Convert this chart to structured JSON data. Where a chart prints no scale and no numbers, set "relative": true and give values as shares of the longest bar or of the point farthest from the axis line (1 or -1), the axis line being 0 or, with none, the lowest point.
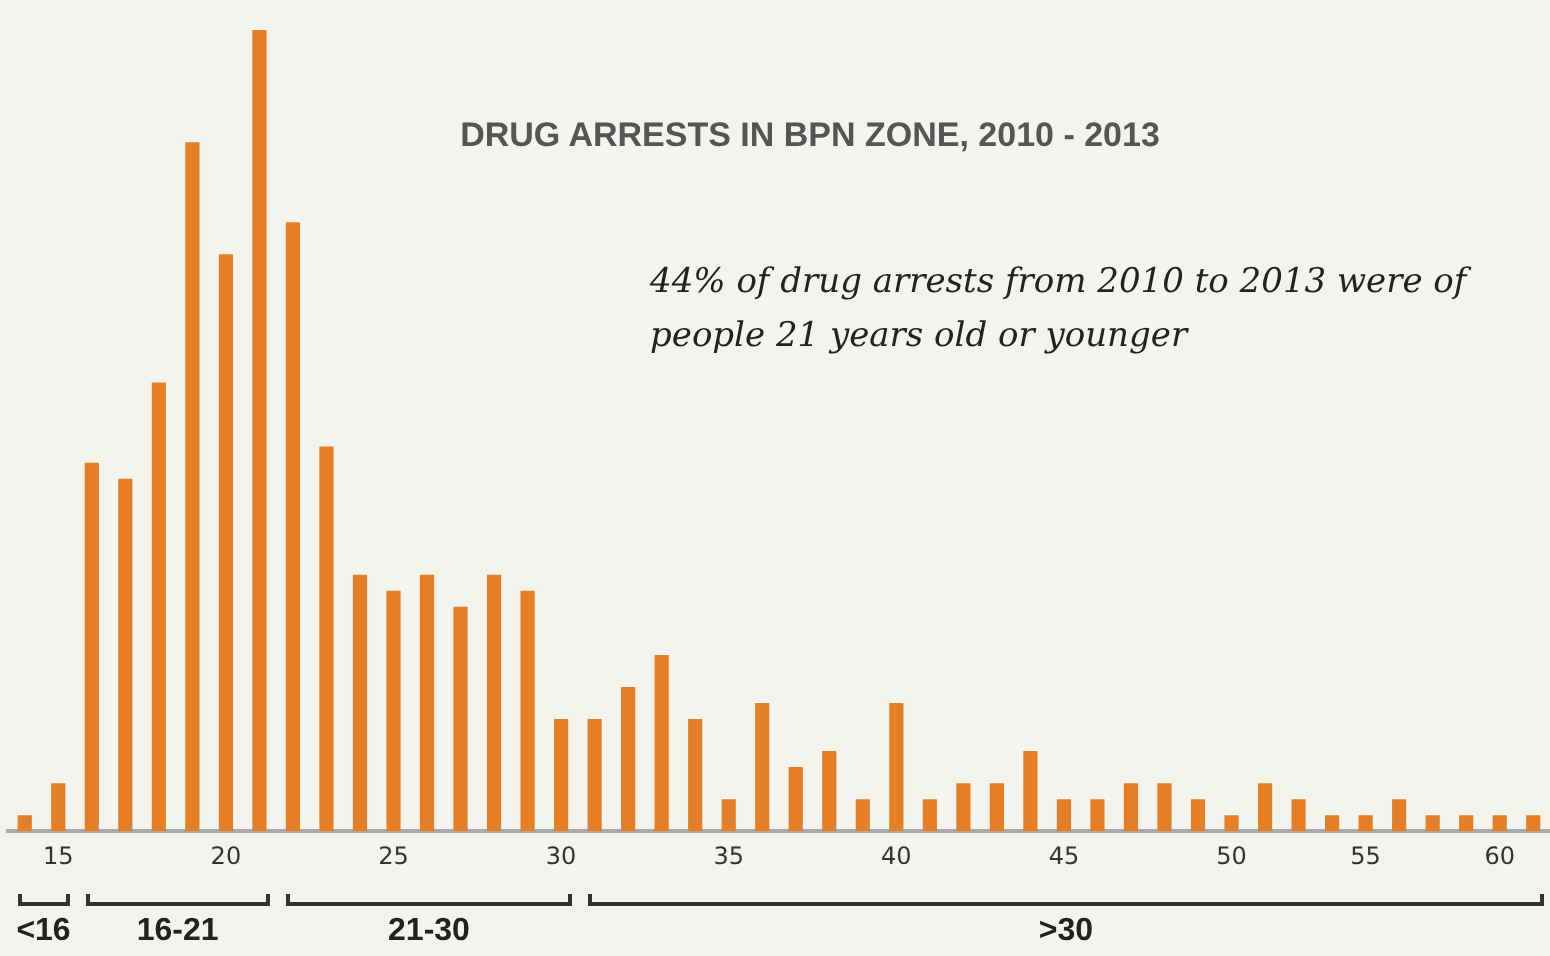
{
  "chart_data": {
    "type": "bar",
    "title": "DRUG ARRESTS IN BPN ZONE, 2010 - 2013",
    "subtitle": "44% of drug arrests from 2010 to 2013 were of people 21 years old or younger",
    "relative": true,
    "color": "#e57e25",
    "grid": false,
    "legend": false,
    "categories": [
      null,
      "15",
      null,
      null,
      null,
      null,
      "20",
      null,
      null,
      null,
      null,
      "25",
      null,
      null,
      null,
      null,
      "30",
      null,
      null,
      null,
      null,
      "35",
      null,
      null,
      null,
      null,
      "40",
      null,
      null,
      null,
      null,
      "45",
      null,
      null,
      null,
      null,
      "50",
      null,
      null,
      null,
      "55",
      null,
      null,
      null,
      "60",
      null
    ],
    "values": [
      0.02,
      0.06,
      0.46,
      0.44,
      0.56,
      0.86,
      0.72,
      1,
      0.76,
      0.48,
      0.32,
      0.3,
      0.32,
      0.28,
      0.32,
      0.3,
      0.14,
      0.14,
      0.18,
      0.22,
      0.14,
      0.04,
      0.16,
      0.08,
      0.1,
      0.04,
      0.16,
      0.04,
      0.06,
      0.06,
      0.1,
      0.04,
      0.04,
      0.06,
      0.06,
      0.04,
      0.02,
      0.06,
      0.04,
      0.02,
      0.02,
      0.04,
      0.02,
      0.02,
      0.02,
      0.02
    ],
    "annotations": [
      "<16",
      "16-21",
      "21-30",
      ">30"
    ]
  }
}
